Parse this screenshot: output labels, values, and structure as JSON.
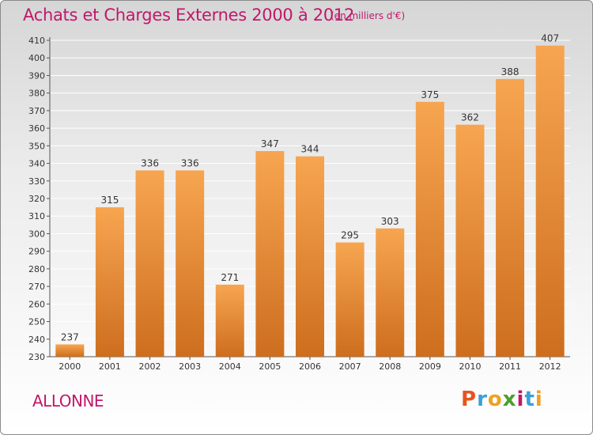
{
  "header": {
    "title": "Achats et Charges Externes 2000 à 2012",
    "unit": "(en milliers d'€)"
  },
  "footer": {
    "commune": "ALLONNE",
    "logo": {
      "text": "Proxiti",
      "letters": [
        "P",
        "r",
        "o",
        "x",
        "i",
        "t",
        "i"
      ],
      "letter_colors": [
        "#e8541c",
        "#3aa0d8",
        "#f0a020",
        "#4aa02c",
        "#c0186a",
        "#3aa0d8",
        "#f0a020"
      ]
    }
  },
  "colors": {
    "accent": "#c0186a",
    "bar_top": "#f7a550",
    "bar_bottom": "#cd6e1e",
    "grid": "#ffffff"
  },
  "chart_data": {
    "type": "bar",
    "categories": [
      "2000",
      "2001",
      "2002",
      "2003",
      "2004",
      "2005",
      "2006",
      "2007",
      "2008",
      "2009",
      "2010",
      "2011",
      "2012"
    ],
    "values": [
      237,
      315,
      336,
      336,
      271,
      347,
      344,
      295,
      303,
      375,
      362,
      388,
      407
    ],
    "title": "Achats et Charges Externes 2000 à 2012",
    "xlabel": "",
    "ylabel": "",
    "ylim": [
      230,
      410
    ],
    "yticks": [
      230,
      240,
      250,
      260,
      270,
      280,
      290,
      300,
      310,
      320,
      330,
      340,
      350,
      360,
      370,
      380,
      390,
      400,
      410
    ],
    "grid": true,
    "legend": "none"
  }
}
